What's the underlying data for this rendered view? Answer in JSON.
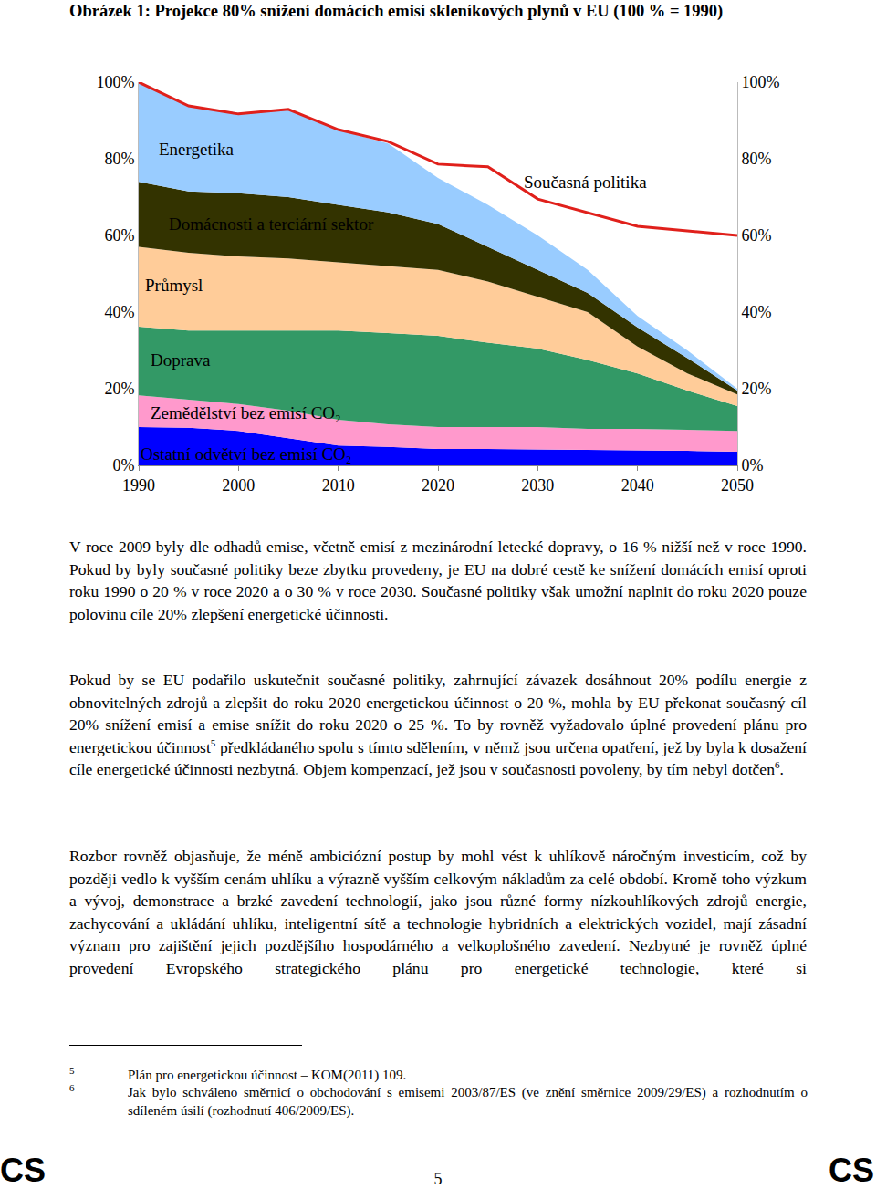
{
  "title": "Obrázek 1: Projekce 80% snížení domácích emisí skleníkových plynů v EU (100 % = 1990)",
  "chart_data": {
    "type": "area",
    "stacked": true,
    "grid": false,
    "x": [
      1990,
      1995,
      2000,
      2005,
      2010,
      2015,
      2020,
      2025,
      2030,
      2035,
      2040,
      2045,
      2050
    ],
    "xlim": [
      1990,
      2050
    ],
    "xticks": [
      1990,
      2000,
      2010,
      2020,
      2030,
      2040,
      2050
    ],
    "ylim": [
      0,
      100
    ],
    "yticks": [
      {
        "value": 0,
        "label": "0%"
      },
      {
        "value": 20,
        "label": "20%"
      },
      {
        "value": 40,
        "label": "40%"
      },
      {
        "value": 60,
        "label": "60%"
      },
      {
        "value": 80,
        "label": "80%"
      },
      {
        "value": 100,
        "label": "100%"
      }
    ],
    "y2lim": [
      0,
      100
    ],
    "y2ticks": [
      {
        "value": 0,
        "label": "0%"
      },
      {
        "value": 20,
        "label": "20%"
      },
      {
        "value": 40,
        "label": "40%"
      },
      {
        "value": 60,
        "label": "60%"
      },
      {
        "value": 80,
        "label": "80%"
      },
      {
        "value": 100,
        "label": "100%"
      }
    ],
    "series": [
      {
        "name": "Ostatní odvětví bez emisí CO₂",
        "type": "area",
        "color": "#0000ff",
        "values": [
          10,
          9.8,
          9,
          7.1,
          5.2,
          4.8,
          4.3,
          4.3,
          4.2,
          4.0,
          3.9,
          3.8,
          3.6
        ]
      },
      {
        "name": "Zemědělství bez emisí CO₂",
        "type": "area",
        "color": "#ff99cc",
        "values": [
          8.3,
          7.3,
          7.0,
          7.2,
          6.7,
          5.9,
          5.7,
          5.7,
          5.8,
          5.5,
          5.6,
          5.5,
          5.4
        ]
      },
      {
        "name": "Doprava",
        "type": "area",
        "color": "#339966",
        "values": [
          17.9,
          18.1,
          19.2,
          20.9,
          23.3,
          23.8,
          23.8,
          22,
          20.5,
          18,
          14.5,
          10.2,
          6.5
        ]
      },
      {
        "name": "Průmysl",
        "type": "area",
        "color": "#ffcc99",
        "values": [
          20.8,
          20.3,
          19.3,
          18.8,
          17.8,
          17.5,
          17.2,
          16,
          13.5,
          12.5,
          7,
          4.5,
          3
        ]
      },
      {
        "name": "Domácnosti a terciární sektor",
        "type": "area",
        "color": "#333300",
        "values": [
          17,
          16,
          16.5,
          16,
          15,
          14,
          12,
          9,
          7,
          5,
          5,
          4,
          1
        ]
      },
      {
        "name": "Energetika",
        "type": "area",
        "color": "#99ccff",
        "values": [
          26,
          22.5,
          21,
          23,
          19.5,
          18,
          12,
          11,
          9,
          6,
          3,
          2,
          0.5
        ]
      },
      {
        "name": "Současná politika",
        "type": "line",
        "color": "#e0201b",
        "axis": "y2",
        "values": [
          100,
          93.8,
          91.7,
          92.9,
          87.6,
          84.5,
          78.6,
          77.9,
          69.5,
          66,
          62.4,
          61.2,
          60
        ]
      }
    ]
  },
  "paragraphs": [
    [
      {
        "text": "V roce 2009 byly dle odhadů emise, včetně emisí z mezinárodní letecké dopravy, o 16 % nižší než v roce 1990. Pokud by byly současné politiky beze zbytku provedeny, je EU na dobré cestě ke snížení domácích emisí oproti roku 1990 o 20 % v roce 2020 a o 30 % v roce 2030. Současné politiky však umožní naplnit do roku 2020 pouze polovinu cíle 20% zlepšení energetické účinnosti."
      }
    ],
    [
      {
        "text": "Pokud by se EU podařilo uskutečnit současné politiky, zahrnující závazek dosáhnout 20% podílu energie z obnovitelných zdrojů a zlepšit do roku 2020 energetickou účinnost o 20 %, mohla by EU překonat současný cíl 20% snížení emisí a emise snížit do roku 2020 o 25 %. To by rovněž vyžadovalo úplné provedení plánu pro energetickou účinnost"
      },
      {
        "sup": "5"
      },
      {
        "text": " předkládaného spolu s tímto sdělením, v němž jsou určena opatření, jež by byla k dosažení cíle energetické účinnosti nezbytná. Objem kompenzací, jež jsou v současnosti povoleny, by tím nebyl dotčen"
      },
      {
        "sup": "6"
      },
      {
        "text": "."
      }
    ],
    [
      {
        "text": "Rozbor rovněž objasňuje, že méně ambiciózní postup by mohl vést k uhlíkově náročným investicím, což by později vedlo k vyšším cenám uhlíku a výrazně vyšším celkovým nákladům za celé období. Kromě toho výzkum a vývoj, demonstrace a brzké zavedení technologií, jako jsou různé formy nízkouhlíkových zdrojů energie, zachycování a ukládání uhlíku, inteligentní sítě a technologie hybridních a elektrických vozidel, mají zásadní význam pro zajištění jejich pozdějšího hospodárného a velkoplošného zavedení. Nezbytné je rovněž úplné provedení Evropského strategického plánu pro energetické technologie, které si"
      }
    ]
  ],
  "footnotes": [
    {
      "mark": "5",
      "text": "Plán pro energetickou účinnost – KOM(2011) 109."
    },
    {
      "mark": "6",
      "text": "Jak bylo schváleno směrnicí o obchodování s emisemi 2003/87/ES (ve znění směrnice 2009/29/ES) a rozhodnutím o sdíleném úsilí (rozhodnutí 406/2009/ES)."
    }
  ],
  "footer": {
    "left": "CS",
    "page": "5",
    "right": "CS"
  }
}
